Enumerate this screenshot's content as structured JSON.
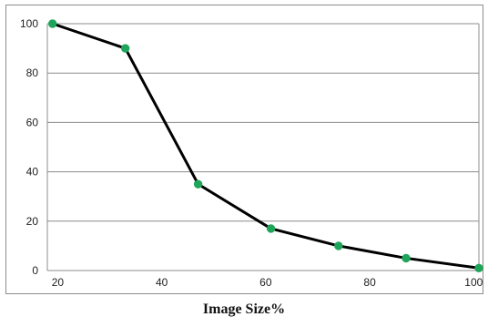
{
  "chart_data": {
    "type": "line",
    "title": "",
    "xlabel": "Image Size%",
    "ylabel": "",
    "x": [
      19,
      33,
      47,
      61,
      74,
      87,
      101
    ],
    "series": [
      {
        "values": [
          100,
          90,
          35,
          17,
          10,
          5,
          1
        ]
      }
    ],
    "xlim": [
      18,
      101
    ],
    "ylim": [
      0,
      100
    ],
    "xticks": [
      20,
      40,
      60,
      80,
      100
    ],
    "yticks": [
      0,
      20,
      40,
      60,
      80,
      100
    ],
    "grid": true,
    "legend": "none",
    "colors": {
      "line": "#000000",
      "marker": "#1fa55a",
      "grid": "#8c8c8c",
      "axis": "#8c8c8c"
    }
  }
}
